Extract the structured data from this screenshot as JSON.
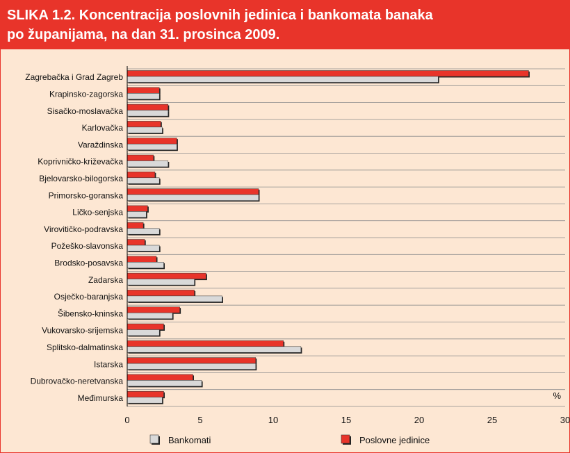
{
  "title": "SLIKA 1.2. Koncentracija poslovnih jedinica i bankomata banaka\npo županijama, na dan 31. prosinca 2009.",
  "colors": {
    "bankomati": "#d9d9d9",
    "poslovne": "#e8342a",
    "title_bg": "#e8342a",
    "background": "#fde7d3"
  },
  "chart_data": {
    "type": "bar",
    "orientation": "horizontal",
    "title": "SLIKA 1.2. Koncentracija poslovnih jedinica i bankomata banaka po županijama, na dan 31. prosinca 2009.",
    "unit_label": "%",
    "xlim": [
      0,
      30
    ],
    "xticks": [
      0,
      5,
      10,
      15,
      20,
      25,
      30
    ],
    "grid": true,
    "legend_position": "bottom",
    "categories": [
      "Zagrebačka i Grad Zagreb",
      "Krapinsko-zagorska",
      "Sisačko-moslavačka",
      "Karlovačka",
      "Varaždinska",
      "Koprivničko-križevačka",
      "Bjelovarsko-bilogorska",
      "Primorsko-goranska",
      "Ličko-senjska",
      "Virovitičko-podravska",
      "Požeško-slavonska",
      "Brodsko-posavska",
      "Zadarska",
      "Osječko-baranjska",
      "Šibensko-kninska",
      "Vukovarsko-srijemska",
      "Splitsko-dalmatinska",
      "Istarska",
      "Dubrovačko-neretvanska",
      "Međimurska"
    ],
    "series": [
      {
        "name": "Poslovne jedinice",
        "values": [
          27.5,
          2.2,
          2.8,
          2.3,
          3.4,
          1.8,
          1.9,
          9.0,
          1.4,
          1.1,
          1.2,
          2.0,
          5.4,
          4.6,
          3.6,
          2.5,
          10.7,
          8.8,
          4.5,
          2.5
        ]
      },
      {
        "name": "Bankomati",
        "values": [
          21.3,
          2.2,
          2.8,
          2.4,
          3.4,
          2.8,
          2.2,
          9.0,
          1.3,
          2.2,
          2.2,
          2.5,
          4.6,
          6.5,
          3.1,
          2.2,
          11.9,
          8.8,
          5.1,
          2.4
        ]
      }
    ]
  }
}
